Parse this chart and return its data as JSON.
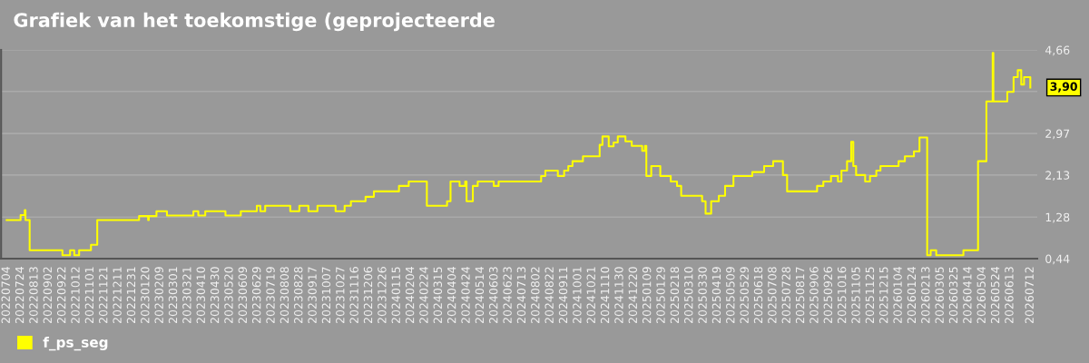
{
  "chart_data": {
    "type": "step",
    "title": "Grafiek van het toekomstige (geprojecteerde",
    "x": [
      "2022-07-04",
      "2022-07-24",
      "2022-07-30",
      "2022-07-31",
      "2022-08-06",
      "2022-09-22",
      "2022-10-03",
      "2022-10-09",
      "2022-10-16",
      "2022-11-02",
      "2022-11-11",
      "2023-01-10",
      "2023-01-23",
      "2023-01-24",
      "2023-02-04",
      "2023-02-19",
      "2023-03-29",
      "2023-04-05",
      "2023-04-15",
      "2023-05-14",
      "2023-06-05",
      "2023-06-28",
      "2023-07-03",
      "2023-07-10",
      "2023-08-15",
      "2023-08-28",
      "2023-09-10",
      "2023-09-23",
      "2023-10-19",
      "2023-11-01",
      "2023-11-10",
      "2023-12-01",
      "2023-12-13",
      "2024-01-18",
      "2024-02-01",
      "2024-02-27",
      "2024-03-27",
      "2024-04-01",
      "2024-04-14",
      "2024-04-22",
      "2024-04-24",
      "2024-05-03",
      "2024-05-10",
      "2024-06-02",
      "2024-06-09",
      "2024-08-09",
      "2024-08-15",
      "2024-09-02",
      "2024-09-11",
      "2024-09-17",
      "2024-09-23",
      "2024-10-08",
      "2024-11-01",
      "2024-11-05",
      "2024-11-14",
      "2024-11-21",
      "2024-11-27",
      "2024-12-08",
      "2024-12-17",
      "2025-01-01",
      "2025-01-05",
      "2025-01-07",
      "2025-01-14",
      "2025-01-27",
      "2025-02-11",
      "2025-02-20",
      "2025-02-26",
      "2025-03-28",
      "2025-04-02",
      "2025-04-10",
      "2025-04-21",
      "2025-04-30",
      "2025-05-12",
      "2025-06-08",
      "2025-06-25",
      "2025-07-08",
      "2025-07-22",
      "2025-07-28",
      "2025-09-09",
      "2025-09-18",
      "2025-09-29",
      "2025-10-09",
      "2025-10-14",
      "2025-10-22",
      "2025-10-28",
      "2025-10-31",
      "2025-11-04",
      "2025-11-17",
      "2025-11-24",
      "2025-12-03",
      "2025-12-09",
      "2026-01-04",
      "2026-01-13",
      "2026-01-26",
      "2026-02-03",
      "2026-02-14",
      "2026-02-19",
      "2026-02-27",
      "2026-04-07",
      "2026-04-28",
      "2026-05-10",
      "2026-05-19",
      "2026-05-20",
      "2026-06-09",
      "2026-06-18",
      "2026-06-24",
      "2026-06-29",
      "2026-07-03",
      "2026-07-12"
    ],
    "series": [
      {
        "name": "f_ps_seg",
        "color": "#ffff00",
        "values": [
          1.22,
          1.32,
          1.42,
          1.22,
          0.61,
          0.51,
          0.61,
          0.51,
          0.61,
          0.72,
          1.22,
          1.3,
          1.22,
          1.3,
          1.4,
          1.31,
          1.4,
          1.31,
          1.4,
          1.31,
          1.4,
          1.51,
          1.4,
          1.51,
          1.4,
          1.51,
          1.4,
          1.51,
          1.4,
          1.51,
          1.6,
          1.69,
          1.8,
          1.91,
          2.0,
          1.51,
          1.6,
          2.0,
          1.91,
          2.0,
          1.6,
          1.91,
          2.0,
          1.91,
          2.0,
          2.11,
          2.22,
          2.11,
          2.22,
          2.31,
          2.41,
          2.51,
          2.74,
          2.91,
          2.71,
          2.79,
          2.91,
          2.81,
          2.72,
          2.62,
          2.72,
          2.11,
          2.31,
          2.11,
          2.0,
          1.91,
          1.71,
          1.6,
          1.35,
          1.6,
          1.71,
          1.91,
          2.11,
          2.19,
          2.31,
          2.41,
          2.13,
          1.8,
          1.91,
          2.0,
          2.11,
          2.0,
          2.22,
          2.41,
          2.8,
          2.31,
          2.13,
          2.0,
          2.11,
          2.22,
          2.31,
          2.41,
          2.51,
          2.61,
          2.89,
          0.51,
          0.61,
          0.51,
          0.61,
          2.41,
          3.62,
          4.6,
          3.62,
          3.81,
          4.11,
          4.25,
          3.96,
          4.11,
          3.9
        ]
      }
    ],
    "xlim": [
      "2022-06-26",
      "2026-07-22"
    ],
    "ylim": [
      0.44,
      4.66
    ],
    "yticks": [
      {
        "value": 0.44,
        "label": "0,44"
      },
      {
        "value": 1.28,
        "label": "1,28"
      },
      {
        "value": 2.13,
        "label": "2,13"
      },
      {
        "value": 2.97,
        "label": "2,97"
      },
      {
        "value": 3.82,
        "label": null
      },
      {
        "value": 4.66,
        "label": "4,66"
      }
    ],
    "xticks": [
      {
        "value": "2022-07-04",
        "label": "20220704"
      },
      {
        "value": "2022-07-24",
        "label": "20220724"
      },
      {
        "value": "2022-08-13",
        "label": "20220813"
      },
      {
        "value": "2022-09-02",
        "label": "20220902"
      },
      {
        "value": "2022-09-22",
        "label": "20220922"
      },
      {
        "value": "2022-10-12",
        "label": "20221012"
      },
      {
        "value": "2022-11-01",
        "label": "20221101"
      },
      {
        "value": "2022-11-21",
        "label": "20221121"
      },
      {
        "value": "2022-12-11",
        "label": "20221211"
      },
      {
        "value": "2022-12-31",
        "label": "20221231"
      },
      {
        "value": "2023-01-20",
        "label": "20230120"
      },
      {
        "value": "2023-02-09",
        "label": "20230209"
      },
      {
        "value": "2023-03-01",
        "label": "20230301"
      },
      {
        "value": "2023-03-21",
        "label": "20230321"
      },
      {
        "value": "2023-04-10",
        "label": "20230410"
      },
      {
        "value": "2023-04-30",
        "label": "20230430"
      },
      {
        "value": "2023-05-20",
        "label": "20230520"
      },
      {
        "value": "2023-06-09",
        "label": "20230609"
      },
      {
        "value": "2023-06-29",
        "label": "20230629"
      },
      {
        "value": "2023-07-19",
        "label": "20230719"
      },
      {
        "value": "2023-08-08",
        "label": "20230808"
      },
      {
        "value": "2023-08-28",
        "label": "20230828"
      },
      {
        "value": "2023-09-17",
        "label": "20230917"
      },
      {
        "value": "2023-10-07",
        "label": "20231007"
      },
      {
        "value": "2023-10-27",
        "label": "20231027"
      },
      {
        "value": "2023-11-16",
        "label": "20231116"
      },
      {
        "value": "2023-12-06",
        "label": "20231206"
      },
      {
        "value": "2023-12-26",
        "label": "20231226"
      },
      {
        "value": "2024-01-15",
        "label": "20240115"
      },
      {
        "value": "2024-02-04",
        "label": "20240204"
      },
      {
        "value": "2024-02-24",
        "label": "20240224"
      },
      {
        "value": "2024-03-15",
        "label": "20240315"
      },
      {
        "value": "2024-04-04",
        "label": "20240404"
      },
      {
        "value": "2024-04-24",
        "label": "20240424"
      },
      {
        "value": "2024-05-14",
        "label": "20240514"
      },
      {
        "value": "2024-06-03",
        "label": "20240603"
      },
      {
        "value": "2024-06-23",
        "label": "20240623"
      },
      {
        "value": "2024-07-13",
        "label": "20240713"
      },
      {
        "value": "2024-08-02",
        "label": "20240802"
      },
      {
        "value": "2024-08-22",
        "label": "20240822"
      },
      {
        "value": "2024-09-11",
        "label": "20240911"
      },
      {
        "value": "2024-10-01",
        "label": "20241001"
      },
      {
        "value": "2024-10-21",
        "label": "20241021"
      },
      {
        "value": "2024-11-10",
        "label": "20241110"
      },
      {
        "value": "2024-11-30",
        "label": "20241130"
      },
      {
        "value": "2024-12-20",
        "label": "20241220"
      },
      {
        "value": "2025-01-09",
        "label": "20250109"
      },
      {
        "value": "2025-01-29",
        "label": "20250129"
      },
      {
        "value": "2025-02-18",
        "label": "20250218"
      },
      {
        "value": "2025-03-10",
        "label": "20250310"
      },
      {
        "value": "2025-03-30",
        "label": "20250330"
      },
      {
        "value": "2025-04-19",
        "label": "20250419"
      },
      {
        "value": "2025-05-09",
        "label": "20250509"
      },
      {
        "value": "2025-05-29",
        "label": "20250529"
      },
      {
        "value": "2025-06-18",
        "label": "20250618"
      },
      {
        "value": "2025-07-08",
        "label": "20250708"
      },
      {
        "value": "2025-07-28",
        "label": "20250728"
      },
      {
        "value": "2025-08-17",
        "label": "20250817"
      },
      {
        "value": "2025-09-06",
        "label": "20250906"
      },
      {
        "value": "2025-09-26",
        "label": "20250926"
      },
      {
        "value": "2025-10-16",
        "label": "20251016"
      },
      {
        "value": "2025-11-05",
        "label": "20251105"
      },
      {
        "value": "2025-11-25",
        "label": "20251125"
      },
      {
        "value": "2025-12-15",
        "label": "20251215"
      },
      {
        "value": "2026-01-04",
        "label": "20260104"
      },
      {
        "value": "2026-01-24",
        "label": "20260124"
      },
      {
        "value": "2026-02-13",
        "label": "20260213"
      },
      {
        "value": "2026-03-05",
        "label": "20260305"
      },
      {
        "value": "2026-03-25",
        "label": "20260325"
      },
      {
        "value": "2026-04-14",
        "label": "20260414"
      },
      {
        "value": "2026-05-04",
        "label": "20260504"
      },
      {
        "value": "2026-05-24",
        "label": "20260524"
      },
      {
        "value": "2026-06-13",
        "label": "20260613"
      },
      {
        "value": "2026-07-12",
        "label": "20260712"
      }
    ],
    "annotations": [
      {
        "text": "3,90",
        "x": "2026-07-12",
        "y": 3.9
      }
    ],
    "grid": "y",
    "legend": "bottom left",
    "marker": "none",
    "line_style": "solid"
  }
}
